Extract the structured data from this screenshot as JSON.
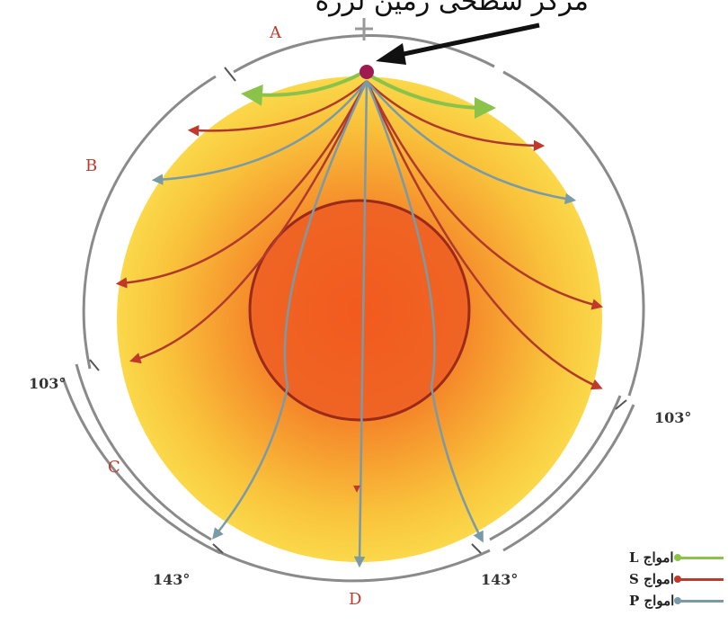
{
  "title": "مرکز سطحی زمین لرزه",
  "zones": {
    "a": "A",
    "b": "B",
    "c": "C",
    "d": "D"
  },
  "angles": {
    "left": "103°",
    "right": "103°",
    "bottom_left": "143°",
    "bottom_right": "143°"
  },
  "legend": [
    {
      "label": "امواج L",
      "color": "#8bc34a"
    },
    {
      "label": "امواج S",
      "color": "#c0392b"
    },
    {
      "label": "امواج P",
      "color": "#7a9aa8"
    }
  ],
  "colors": {
    "l_wave": "#8bc34a",
    "s_wave": "#c0392b",
    "p_wave": "#7a9aa8",
    "zone_text": "#c0392b"
  }
}
